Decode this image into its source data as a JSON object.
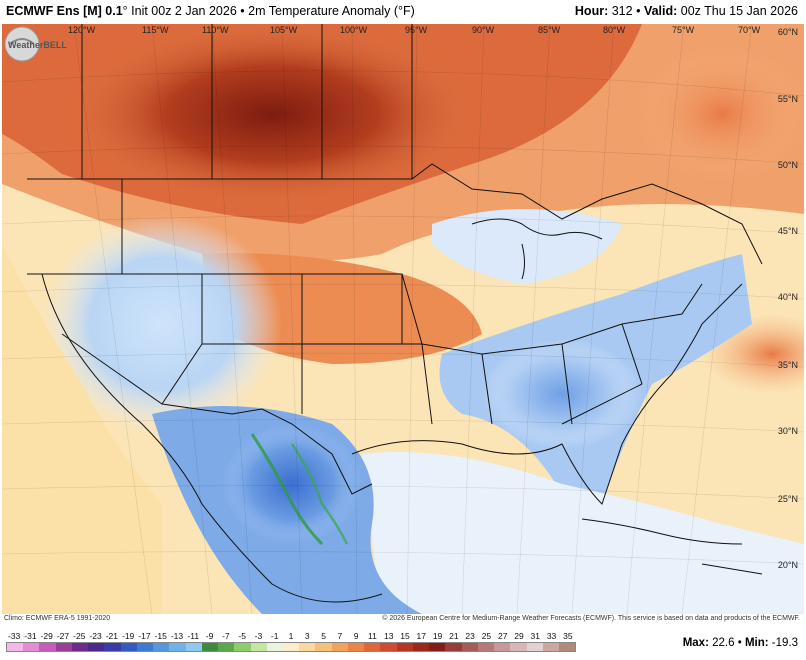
{
  "header": {
    "model": "ECMWF Ens [M] 0.1",
    "degree": "°",
    "init": "Init 00z 2 Jan 2026",
    "bullet": "•",
    "field": "2m Temperature Anomaly (°F)",
    "hour_label": "Hour:",
    "hour_value": "312",
    "valid_label": "Valid:",
    "valid_value": "00z Thu 15 Jan 2026"
  },
  "map": {
    "lon_labels": [
      "120°W",
      "115°W",
      "110°W",
      "105°W",
      "100°W",
      "95°W",
      "90°W",
      "85°W",
      "80°W",
      "75°W",
      "70°W"
    ],
    "lat_labels": [
      "55°N",
      "50°N",
      "45°N",
      "40°N",
      "35°N",
      "30°N",
      "25°N",
      "20°N",
      "60°N"
    ],
    "logo_text": "WeatherBELL",
    "colors": {
      "very_warm": "#8a2212",
      "warm": "#c84a24",
      "mild_warm": "#ee8a50",
      "slight_warm": "#fbd49a",
      "neutral": "#fbe9c4",
      "slight_cool": "#e6f1ff",
      "cool": "#9cc3f2",
      "cold": "#4f87d9",
      "very_cold": "#2b9a3c"
    }
  },
  "footer": {
    "climo": "Climo: ECMWF ERA-5 1991-2020",
    "copyright": "© 2026 European Centre for Medium-Range Weather Forecasts (ECMWF). This service is based on data and products of the ECMWF."
  },
  "legend": {
    "ticks": [
      "-33",
      "-31",
      "-29",
      "-27",
      "-25",
      "-23",
      "-21",
      "-19",
      "-17",
      "-15",
      "-13",
      "-11",
      "-9",
      "-7",
      "-5",
      "-3",
      "-1",
      "1",
      "3",
      "5",
      "7",
      "9",
      "11",
      "13",
      "15",
      "17",
      "19",
      "21",
      "23",
      "25",
      "27",
      "29",
      "31",
      "33",
      "35"
    ],
    "colors": [
      "#f5b7e8",
      "#e68cd4",
      "#c65bb8",
      "#9a3f98",
      "#6e2a8c",
      "#4b2a8c",
      "#3a3aa8",
      "#3559c2",
      "#3d7ad4",
      "#5598e0",
      "#6fb4e8",
      "#8ecaf0",
      "#3c8a3c",
      "#5aa84a",
      "#8ccd6a",
      "#c3e7a2",
      "#e8f4dc",
      "#fbeccd",
      "#fad8a0",
      "#f7bf7a",
      "#f2a25c",
      "#ec8448",
      "#e0663a",
      "#cf4a2c",
      "#b83424",
      "#9c261c",
      "#861c16",
      "#9a3a3a",
      "#a85a5a",
      "#b77a7a",
      "#c69898",
      "#d6b6b6",
      "#e4d0d0",
      "#c9a8a0",
      "#b0887c"
    ],
    "max_label": "Max:",
    "max_value": "22.6",
    "min_label": "Min:",
    "min_value": "-19.3"
  }
}
